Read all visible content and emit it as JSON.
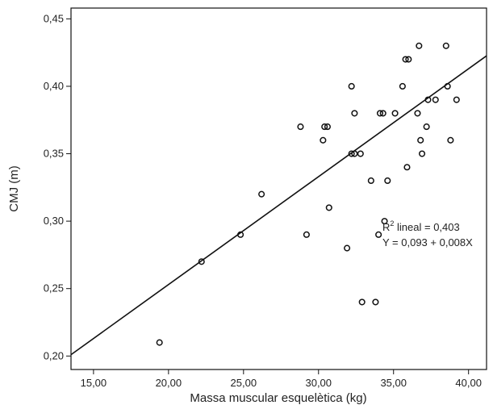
{
  "chart_data": {
    "type": "scatter",
    "xlabel": "Massa muscular esquelètica (kg)",
    "ylabel": "CMJ (m)",
    "xlim": [
      13.5,
      41.2
    ],
    "ylim": [
      0.19,
      0.458
    ],
    "xticks": [
      15,
      20,
      25,
      30,
      35,
      40
    ],
    "xtick_labels": [
      "15,00",
      "20,00",
      "25,00",
      "30,00",
      "35,00",
      "40,00"
    ],
    "yticks": [
      0.2,
      0.25,
      0.3,
      0.35,
      0.4,
      0.45
    ],
    "ytick_labels": [
      "0,20",
      "0,25",
      "0,30",
      "0,35",
      "0,40",
      "0,45"
    ],
    "grid": false,
    "marker_color": "#111111",
    "line_color": "#111111",
    "fit_line": {
      "intercept": 0.093,
      "slope": 0.008
    },
    "annotation": {
      "r_prefix": "R",
      "r_sup": "2",
      "r_text": " lineal = 0,403",
      "equation": "Y = 0,093 + 0,008X"
    },
    "points": [
      {
        "x": 19.4,
        "y": 0.21
      },
      {
        "x": 22.2,
        "y": 0.27
      },
      {
        "x": 24.8,
        "y": 0.29
      },
      {
        "x": 26.2,
        "y": 0.32
      },
      {
        "x": 28.8,
        "y": 0.37
      },
      {
        "x": 29.2,
        "y": 0.29
      },
      {
        "x": 30.3,
        "y": 0.36
      },
      {
        "x": 30.4,
        "y": 0.37
      },
      {
        "x": 30.6,
        "y": 0.37
      },
      {
        "x": 30.7,
        "y": 0.31
      },
      {
        "x": 31.9,
        "y": 0.28
      },
      {
        "x": 32.2,
        "y": 0.4
      },
      {
        "x": 32.2,
        "y": 0.35
      },
      {
        "x": 32.4,
        "y": 0.35
      },
      {
        "x": 32.4,
        "y": 0.38
      },
      {
        "x": 32.8,
        "y": 0.35
      },
      {
        "x": 32.9,
        "y": 0.24
      },
      {
        "x": 33.5,
        "y": 0.33
      },
      {
        "x": 33.8,
        "y": 0.24
      },
      {
        "x": 34.0,
        "y": 0.29
      },
      {
        "x": 34.1,
        "y": 0.38
      },
      {
        "x": 34.3,
        "y": 0.38
      },
      {
        "x": 34.4,
        "y": 0.3
      },
      {
        "x": 34.6,
        "y": 0.33
      },
      {
        "x": 35.1,
        "y": 0.38
      },
      {
        "x": 35.6,
        "y": 0.4
      },
      {
        "x": 35.8,
        "y": 0.42
      },
      {
        "x": 35.9,
        "y": 0.34
      },
      {
        "x": 36.0,
        "y": 0.42
      },
      {
        "x": 36.6,
        "y": 0.38
      },
      {
        "x": 36.7,
        "y": 0.43
      },
      {
        "x": 36.8,
        "y": 0.36
      },
      {
        "x": 36.9,
        "y": 0.35
      },
      {
        "x": 37.2,
        "y": 0.37
      },
      {
        "x": 37.3,
        "y": 0.39
      },
      {
        "x": 37.8,
        "y": 0.39
      },
      {
        "x": 38.5,
        "y": 0.43
      },
      {
        "x": 38.6,
        "y": 0.4
      },
      {
        "x": 38.8,
        "y": 0.36
      },
      {
        "x": 39.2,
        "y": 0.39
      }
    ]
  }
}
